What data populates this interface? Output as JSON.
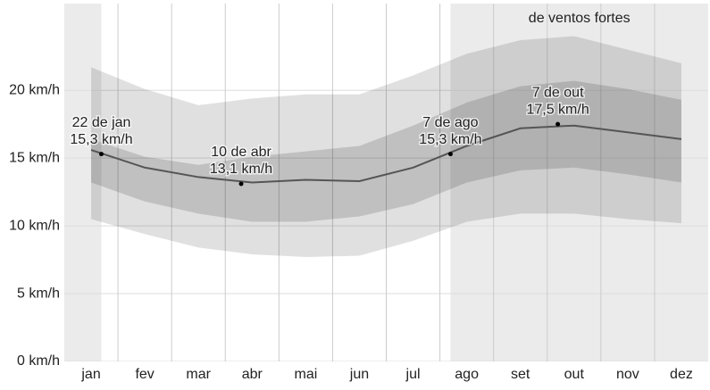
{
  "chart_data": {
    "type": "line",
    "categories": [
      "jan",
      "fev",
      "mar",
      "abr",
      "mai",
      "jun",
      "jul",
      "ago",
      "set",
      "out",
      "nov",
      "dez"
    ],
    "series": [
      {
        "color": "#555555",
        "values": [
          15.6,
          14.3,
          13.6,
          13.2,
          13.4,
          13.3,
          14.3,
          15.9,
          17.2,
          17.4,
          16.9,
          16.4
        ]
      }
    ],
    "bands": [
      {
        "color": "rgba(0,0,0,0.12)",
        "low": [
          10.5,
          9.4,
          8.4,
          7.9,
          7.7,
          7.8,
          8.9,
          10.3,
          10.9,
          10.9,
          10.5,
          10.2
        ],
        "high": [
          21.7,
          20.1,
          18.9,
          19.4,
          19.7,
          19.7,
          21.1,
          22.7,
          23.7,
          24.0,
          23.0,
          22.0
        ]
      },
      {
        "color": "rgba(0,0,0,0.14)",
        "low": [
          13.2,
          11.8,
          10.9,
          10.3,
          10.3,
          10.7,
          11.6,
          13.2,
          14.1,
          14.3,
          13.8,
          13.2
        ],
        "high": [
          16.4,
          15.1,
          14.5,
          15.1,
          15.5,
          15.9,
          17.4,
          19.1,
          20.3,
          20.7,
          20.1,
          19.3
        ]
      }
    ],
    "ylim": [
      0,
      26.4
    ],
    "yticks": [
      {
        "value": 0,
        "label": "0 km/h"
      },
      {
        "value": 5,
        "label": "5 km/h"
      },
      {
        "value": 10,
        "label": "10 km/h"
      },
      {
        "value": 15,
        "label": "15 km/h"
      },
      {
        "value": 20,
        "label": "20 km/h"
      }
    ],
    "grid": true,
    "highlight_label": "de ventos fortes",
    "annotations": [
      {
        "label": "22 de jan",
        "value": 15.3,
        "value_label": "15,3 km/h"
      },
      {
        "label": "10 de abr",
        "value": 13.1,
        "value_label": "13,1 km/h"
      },
      {
        "label": "7 de ago",
        "value": 15.3,
        "value_label": "15,3 km/h"
      },
      {
        "label": "7 de out",
        "value": 17.5,
        "value_label": "17,5 km/h"
      }
    ]
  }
}
